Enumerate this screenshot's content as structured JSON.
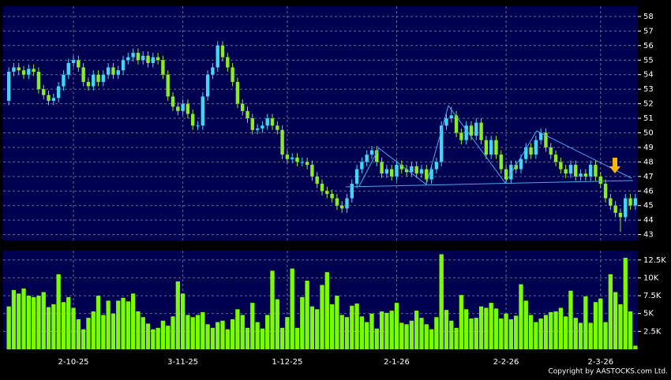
{
  "chart_data": [
    {
      "type": "candlestick",
      "up_color": "#44d4f4",
      "down_color": "#88ee22",
      "grid": true,
      "open": [
        52.2,
        54.2,
        54.5,
        54.3,
        54.0,
        54.4,
        54.2,
        53.0,
        52.6,
        52.2,
        52.4,
        53.2,
        54.0,
        54.8,
        55.0,
        54.5,
        53.5,
        53.2,
        54.0,
        53.5,
        54.0,
        54.5,
        54.0,
        54.3,
        55.0,
        55.2,
        55.5,
        55.0,
        55.3,
        54.8,
        55.2,
        55.0,
        54.0,
        52.5,
        51.8,
        51.5,
        52.0,
        51.3,
        50.5,
        50.5,
        52.5,
        54.0,
        54.5,
        56.0,
        55.2,
        54.5,
        53.5,
        52.0,
        51.5,
        51.0,
        50.2,
        50.3,
        50.5,
        51.0,
        50.5,
        50.2,
        48.5,
        48.2,
        48.3,
        48.0,
        48.0,
        47.8,
        47.0,
        46.5,
        46.0,
        45.8,
        45.5,
        45.0,
        44.8,
        45.5,
        46.5,
        47.5,
        48.0,
        48.5,
        48.8,
        48.0,
        47.2,
        47.5,
        47.0,
        47.8,
        47.5,
        47.3,
        47.7,
        47.2,
        47.5,
        46.8,
        47.5,
        48.0,
        50.5,
        51.0,
        51.2,
        50.0,
        49.5,
        50.5,
        49.8,
        50.7,
        49.5,
        48.5,
        49.5,
        48.5,
        47.5,
        46.8,
        47.8,
        47.5,
        48.2,
        49.0,
        48.5,
        49.5,
        50.0,
        49.0,
        48.5,
        48.0,
        47.5,
        47.2,
        47.8,
        47.0,
        47.2,
        47.0,
        47.8,
        47.0,
        46.5,
        45.5,
        45.0,
        44.5,
        44.2,
        45.5,
        45.0
      ],
      "high": [
        54.5,
        54.8,
        54.8,
        54.6,
        54.7,
        54.7,
        54.5,
        53.3,
        52.9,
        52.7,
        53.5,
        54.3,
        55.1,
        55.3,
        55.3,
        54.8,
        53.8,
        54.3,
        54.3,
        54.3,
        54.8,
        54.8,
        54.6,
        55.3,
        55.5,
        55.8,
        55.8,
        55.6,
        55.6,
        55.5,
        55.5,
        55.3,
        54.3,
        52.8,
        52.1,
        52.3,
        52.3,
        51.6,
        50.8,
        52.8,
        54.3,
        54.8,
        56.3,
        56.3,
        55.5,
        54.8,
        53.8,
        52.3,
        51.8,
        51.3,
        50.6,
        50.8,
        51.3,
        51.3,
        50.8,
        50.5,
        48.8,
        48.6,
        48.6,
        48.3,
        48.3,
        48.1,
        47.3,
        46.8,
        46.3,
        46.1,
        45.8,
        45.3,
        45.8,
        46.8,
        47.8,
        48.3,
        48.8,
        49.1,
        49.1,
        48.3,
        47.8,
        47.8,
        48.1,
        48.1,
        47.8,
        48.0,
        48.0,
        47.8,
        47.8,
        47.8,
        48.3,
        50.8,
        51.3,
        51.8,
        51.5,
        50.3,
        50.8,
        50.8,
        51.0,
        51.0,
        49.8,
        49.8,
        49.8,
        48.8,
        47.8,
        48.1,
        48.1,
        48.5,
        49.3,
        49.3,
        49.8,
        50.3,
        50.3,
        49.3,
        48.8,
        48.3,
        47.8,
        48.1,
        48.1,
        47.5,
        47.5,
        48.1,
        48.1,
        47.3,
        46.8,
        45.8,
        45.3,
        44.8,
        45.8,
        45.8,
        45.8
      ],
      "low": [
        51.9,
        53.9,
        54.0,
        53.7,
        53.7,
        53.9,
        52.7,
        52.3,
        51.9,
        51.9,
        52.1,
        52.9,
        53.7,
        54.5,
        54.2,
        53.2,
        52.9,
        52.9,
        53.2,
        53.2,
        53.7,
        53.7,
        53.7,
        54.0,
        54.7,
        54.9,
        54.7,
        54.7,
        54.5,
        54.5,
        54.7,
        53.7,
        52.2,
        51.5,
        51.2,
        51.2,
        51.0,
        50.2,
        50.2,
        50.2,
        52.2,
        53.7,
        54.2,
        54.9,
        54.2,
        53.2,
        51.7,
        51.2,
        50.7,
        49.9,
        49.9,
        50.0,
        50.2,
        50.2,
        49.9,
        48.2,
        47.9,
        47.9,
        47.7,
        47.7,
        47.5,
        46.7,
        46.2,
        45.7,
        45.5,
        45.2,
        44.7,
        44.5,
        44.5,
        45.2,
        46.2,
        47.2,
        47.7,
        48.2,
        47.7,
        46.9,
        46.9,
        46.7,
        46.7,
        47.2,
        47.0,
        47.0,
        46.9,
        46.9,
        46.5,
        46.5,
        47.2,
        47.7,
        50.2,
        50.7,
        49.7,
        49.2,
        49.2,
        49.5,
        49.5,
        49.2,
        48.2,
        48.2,
        48.2,
        47.2,
        46.5,
        46.5,
        47.2,
        47.2,
        47.9,
        48.2,
        48.2,
        49.2,
        48.7,
        48.2,
        47.7,
        47.2,
        46.9,
        46.9,
        46.7,
        46.7,
        46.7,
        46.7,
        46.7,
        46.2,
        45.2,
        44.7,
        44.2,
        43.2,
        43.9,
        44.7,
        44.7
      ],
      "close": [
        54.2,
        54.5,
        54.3,
        54.0,
        54.4,
        54.2,
        53.0,
        52.6,
        52.2,
        52.4,
        53.2,
        54.0,
        54.8,
        55.0,
        54.5,
        53.5,
        53.2,
        54.0,
        53.5,
        54.0,
        54.5,
        54.0,
        54.3,
        55.0,
        55.2,
        55.5,
        55.0,
        55.3,
        54.8,
        55.2,
        55.0,
        54.0,
        52.5,
        51.8,
        51.5,
        52.0,
        51.3,
        50.5,
        50.5,
        52.5,
        54.0,
        54.5,
        56.0,
        55.2,
        54.5,
        53.5,
        52.0,
        51.5,
        51.0,
        50.2,
        50.3,
        50.5,
        51.0,
        50.5,
        50.2,
        48.5,
        48.2,
        48.3,
        48.0,
        48.0,
        47.8,
        47.0,
        46.5,
        46.0,
        45.8,
        45.5,
        45.0,
        44.8,
        45.5,
        46.5,
        47.5,
        48.0,
        48.5,
        48.8,
        48.0,
        47.2,
        47.5,
        47.0,
        47.8,
        47.5,
        47.3,
        47.7,
        47.2,
        47.5,
        46.8,
        47.5,
        48.0,
        50.5,
        51.0,
        51.2,
        50.0,
        49.5,
        50.5,
        49.8,
        50.7,
        49.5,
        48.5,
        49.5,
        48.5,
        47.5,
        46.8,
        47.8,
        47.5,
        48.2,
        49.0,
        48.5,
        49.5,
        50.0,
        49.0,
        48.5,
        48.0,
        47.5,
        47.2,
        47.8,
        47.0,
        47.2,
        47.0,
        47.8,
        47.0,
        46.5,
        45.5,
        45.0,
        44.5,
        44.2,
        45.5,
        45.0,
        45.5
      ],
      "ylim": [
        42.6,
        58.7
      ],
      "yticks": [
        43,
        44,
        45,
        46,
        47,
        48,
        49,
        50,
        51,
        52,
        53,
        54,
        55,
        56,
        57,
        58
      ]
    },
    {
      "type": "bar",
      "color": "#7cfc00",
      "grid": true,
      "categories": [
        null,
        null,
        null,
        null,
        null,
        null,
        null,
        null,
        null,
        null,
        null,
        null,
        null,
        "2-10-25",
        null,
        null,
        null,
        null,
        null,
        null,
        null,
        null,
        null,
        null,
        null,
        null,
        null,
        null,
        null,
        null,
        null,
        null,
        null,
        null,
        null,
        "3-11-25",
        null,
        null,
        null,
        null,
        null,
        null,
        null,
        null,
        null,
        null,
        null,
        null,
        null,
        null,
        null,
        null,
        null,
        null,
        null,
        null,
        "1-12-25",
        null,
        null,
        null,
        null,
        null,
        null,
        null,
        null,
        null,
        null,
        null,
        null,
        null,
        null,
        null,
        null,
        null,
        null,
        null,
        null,
        null,
        "2-1-26",
        null,
        null,
        null,
        null,
        null,
        null,
        null,
        null,
        null,
        null,
        null,
        null,
        null,
        null,
        null,
        null,
        null,
        null,
        null,
        null,
        null,
        "2-2-26",
        null,
        null,
        null,
        null,
        null,
        null,
        null,
        null,
        null,
        null,
        null,
        null,
        null,
        null,
        null,
        null,
        null,
        null,
        "2-3-26",
        null,
        null,
        null,
        null,
        null,
        null,
        null
      ],
      "values": [
        6000,
        8300,
        7800,
        8500,
        7500,
        7300,
        7500,
        8000,
        5900,
        6300,
        10500,
        6600,
        7300,
        5800,
        4200,
        2800,
        4400,
        5300,
        7500,
        4800,
        6800,
        5000,
        6800,
        7200,
        6700,
        7800,
        5300,
        4500,
        3600,
        2800,
        3000,
        4000,
        3300,
        4600,
        9500,
        7800,
        4800,
        4500,
        4800,
        5200,
        3500,
        3000,
        3800,
        4000,
        2800,
        4200,
        5600,
        4800,
        3000,
        6500,
        3800,
        2900,
        4800,
        11000,
        7000,
        3000,
        4500,
        11300,
        3000,
        7300,
        9600,
        6000,
        5600,
        9000,
        10800,
        6300,
        7500,
        4800,
        4500,
        6100,
        6400,
        4600,
        3800,
        5000,
        2900,
        5300,
        5100,
        5400,
        6500,
        3700,
        3500,
        4000,
        5400,
        4400,
        3500,
        2800,
        4500,
        13300,
        5500,
        4000,
        3000,
        7600,
        5600,
        4300,
        4400,
        6000,
        5800,
        6500,
        5700,
        4300,
        5000,
        4200,
        4700,
        9100,
        6800,
        4800,
        3800,
        4300,
        4800,
        5200,
        5300,
        5800,
        4600,
        8200,
        4400,
        3700,
        7400,
        3700,
        6600,
        7100,
        3800,
        10500,
        8000,
        6300,
        12800,
        5300,
        500
      ],
      "ylim": [
        0,
        13800
      ],
      "yticks": [
        {
          "value": 2500,
          "label": "2.5K"
        },
        {
          "value": 5000,
          "label": "5K"
        },
        {
          "value": 7500,
          "label": "7.5K"
        },
        {
          "value": 10000,
          "label": "10K"
        },
        {
          "value": 12500,
          "label": "12.5K"
        }
      ]
    }
  ],
  "copyright": "Copyright by AASTOCKS.com Ltd."
}
